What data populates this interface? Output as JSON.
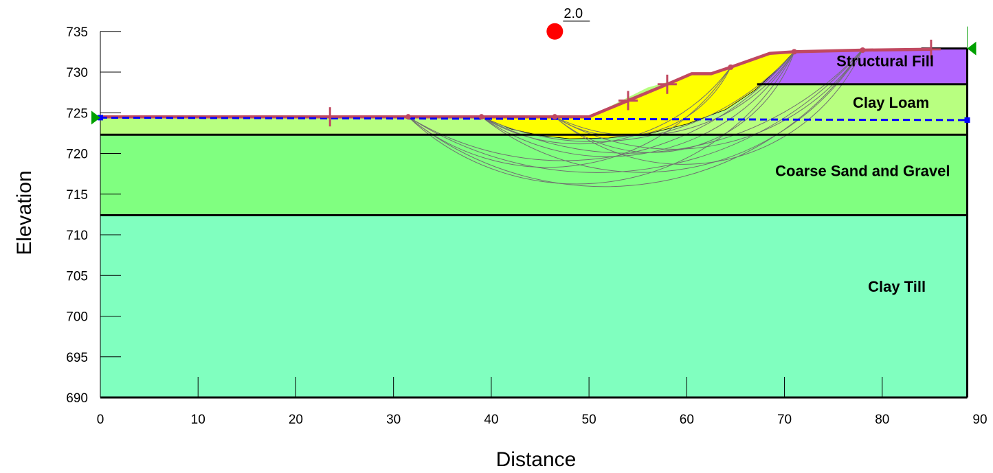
{
  "chart_data": {
    "type": "slope-stability-section",
    "xlabel": "Distance",
    "ylabel": "Elevation",
    "xlim": [
      0,
      90
    ],
    "ylim": [
      690,
      737
    ],
    "xticks": [
      0,
      10,
      20,
      30,
      40,
      50,
      60,
      70,
      80,
      90
    ],
    "yticks": [
      690,
      695,
      700,
      705,
      710,
      715,
      720,
      725,
      730,
      735
    ],
    "colors": {
      "structural_fill": "#b266ff",
      "clay_loam": "#b8ff80",
      "sand_gravel": "#80ff80",
      "clay_till": "#80ffbf",
      "slip_mass": "#ffff00",
      "surface_line": "#c04860",
      "water_table": "#0000ff",
      "critical_center": "#ff0000",
      "limit_marker": "#00a000",
      "trial_surfaces": "#707070"
    },
    "layers": [
      {
        "name": "Clay Till",
        "label_x": 81.5,
        "label_y": 703.0,
        "polygon": [
          [
            0,
            690
          ],
          [
            88.7,
            690
          ],
          [
            88.7,
            712.4
          ],
          [
            0,
            712.4
          ]
        ]
      },
      {
        "name": "Coarse Sand and Gravel",
        "label_x": 78.0,
        "label_y": 717.2,
        "polygon": [
          [
            0,
            712.4
          ],
          [
            88.7,
            712.4
          ],
          [
            88.7,
            722.3
          ],
          [
            0,
            722.3
          ]
        ]
      },
      {
        "name": "Clay Loam",
        "label_x": 80.9,
        "label_y": 725.6,
        "polygon": [
          [
            0,
            722.3
          ],
          [
            88.7,
            722.3
          ],
          [
            88.7,
            728.5
          ],
          [
            67.2,
            728.5
          ],
          [
            61.5,
            729.9
          ],
          [
            56,
            728.1
          ],
          [
            50,
            724.5
          ],
          [
            0,
            724.5
          ]
        ]
      },
      {
        "name": "Structural Fill",
        "label_x": 80.3,
        "label_y": 730.7,
        "polygon": [
          [
            67.2,
            728.5
          ],
          [
            88.7,
            728.5
          ],
          [
            88.7,
            732.9
          ],
          [
            84,
            732.9
          ],
          [
            71,
            732.5
          ]
        ]
      }
    ],
    "ground_surface": [
      [
        0,
        724.5
      ],
      [
        23.5,
        724.5
      ],
      [
        31.5,
        724.5
      ],
      [
        39,
        724.5
      ],
      [
        46.5,
        724.5
      ],
      [
        50,
        724.5
      ],
      [
        53.5,
        726.2
      ],
      [
        58,
        728.4
      ],
      [
        60.5,
        729.8
      ],
      [
        62.5,
        729.8
      ],
      [
        64.5,
        730.6
      ],
      [
        68.5,
        732.3
      ],
      [
        71,
        732.5
      ],
      [
        78,
        732.8
      ],
      [
        84,
        732.9
      ],
      [
        88.7,
        732.9
      ]
    ],
    "analysis_surface": [
      [
        0,
        724.5
      ],
      [
        23.5,
        724.5
      ],
      [
        31.5,
        724.5
      ],
      [
        39,
        724.5
      ],
      [
        46.5,
        724.5
      ],
      [
        50,
        724.5
      ],
      [
        54,
        726.5
      ],
      [
        58,
        728.5
      ],
      [
        60.5,
        729.8
      ],
      [
        62.5,
        729.8
      ],
      [
        64.5,
        730.6
      ],
      [
        68.5,
        732.3
      ],
      [
        71,
        732.5
      ],
      [
        78,
        732.7
      ],
      [
        85,
        732.8
      ]
    ],
    "surface_nodes": [
      [
        31.5,
        724.5
      ],
      [
        39,
        724.5
      ],
      [
        46.5,
        724.5
      ],
      [
        64.5,
        730.6
      ],
      [
        71,
        732.5
      ],
      [
        78,
        732.7
      ]
    ],
    "limit_markers": [
      [
        23.5,
        724.5
      ],
      [
        54,
        726.5
      ],
      [
        58,
        728.5
      ],
      [
        85,
        732.8
      ]
    ],
    "water_table": [
      [
        0,
        724.4
      ],
      [
        88.7,
        724.1
      ]
    ],
    "critical_slip_surface": [
      [
        39,
        724.5
      ],
      [
        42,
        723.0
      ],
      [
        45,
        722.2
      ],
      [
        48,
        721.8
      ],
      [
        52,
        721.9
      ],
      [
        56,
        722.4
      ],
      [
        60,
        723.6
      ],
      [
        64,
        725.4
      ],
      [
        67,
        727.8
      ],
      [
        69,
        730.0
      ],
      [
        71,
        732.5
      ],
      [
        68.5,
        732.3
      ],
      [
        64.5,
        730.6
      ],
      [
        62.5,
        729.8
      ],
      [
        60.5,
        729.8
      ],
      [
        58,
        728.4
      ],
      [
        53.5,
        726.2
      ],
      [
        50,
        724.5
      ]
    ],
    "trial_surfaces": [
      {
        "start": 31.5,
        "end": 71,
        "depth": 716.5
      },
      {
        "start": 31.5,
        "end": 78,
        "depth": 716.2
      },
      {
        "start": 39,
        "end": 71,
        "depth": 720.0
      },
      {
        "start": 39,
        "end": 78,
        "depth": 718.0
      },
      {
        "start": 39,
        "end": 64.5,
        "depth": 721.5
      },
      {
        "start": 46.5,
        "end": 71,
        "depth": 720.5
      },
      {
        "start": 46.5,
        "end": 78,
        "depth": 719.0
      },
      {
        "start": 46.5,
        "end": 64.5,
        "depth": 722.5
      },
      {
        "start": 31.5,
        "end": 64.5,
        "depth": 718.5
      },
      {
        "start": 39,
        "end": 71,
        "depth": 722.0
      },
      {
        "start": 46.5,
        "end": 71,
        "depth": 722.8
      },
      {
        "start": 31.5,
        "end": 71,
        "depth": 719.5
      },
      {
        "start": 39,
        "end": 78,
        "depth": 720.5
      },
      {
        "start": 46.5,
        "end": 78,
        "depth": 721.0
      },
      {
        "start": 31.5,
        "end": 78,
        "depth": 718.0
      }
    ],
    "critical_center": {
      "x": 46.5,
      "y": 735.0,
      "fos": "2.0"
    },
    "left_limit": {
      "x": 0,
      "y": 724.4
    },
    "right_limit": {
      "x": 88.7,
      "y": 732.9
    }
  }
}
